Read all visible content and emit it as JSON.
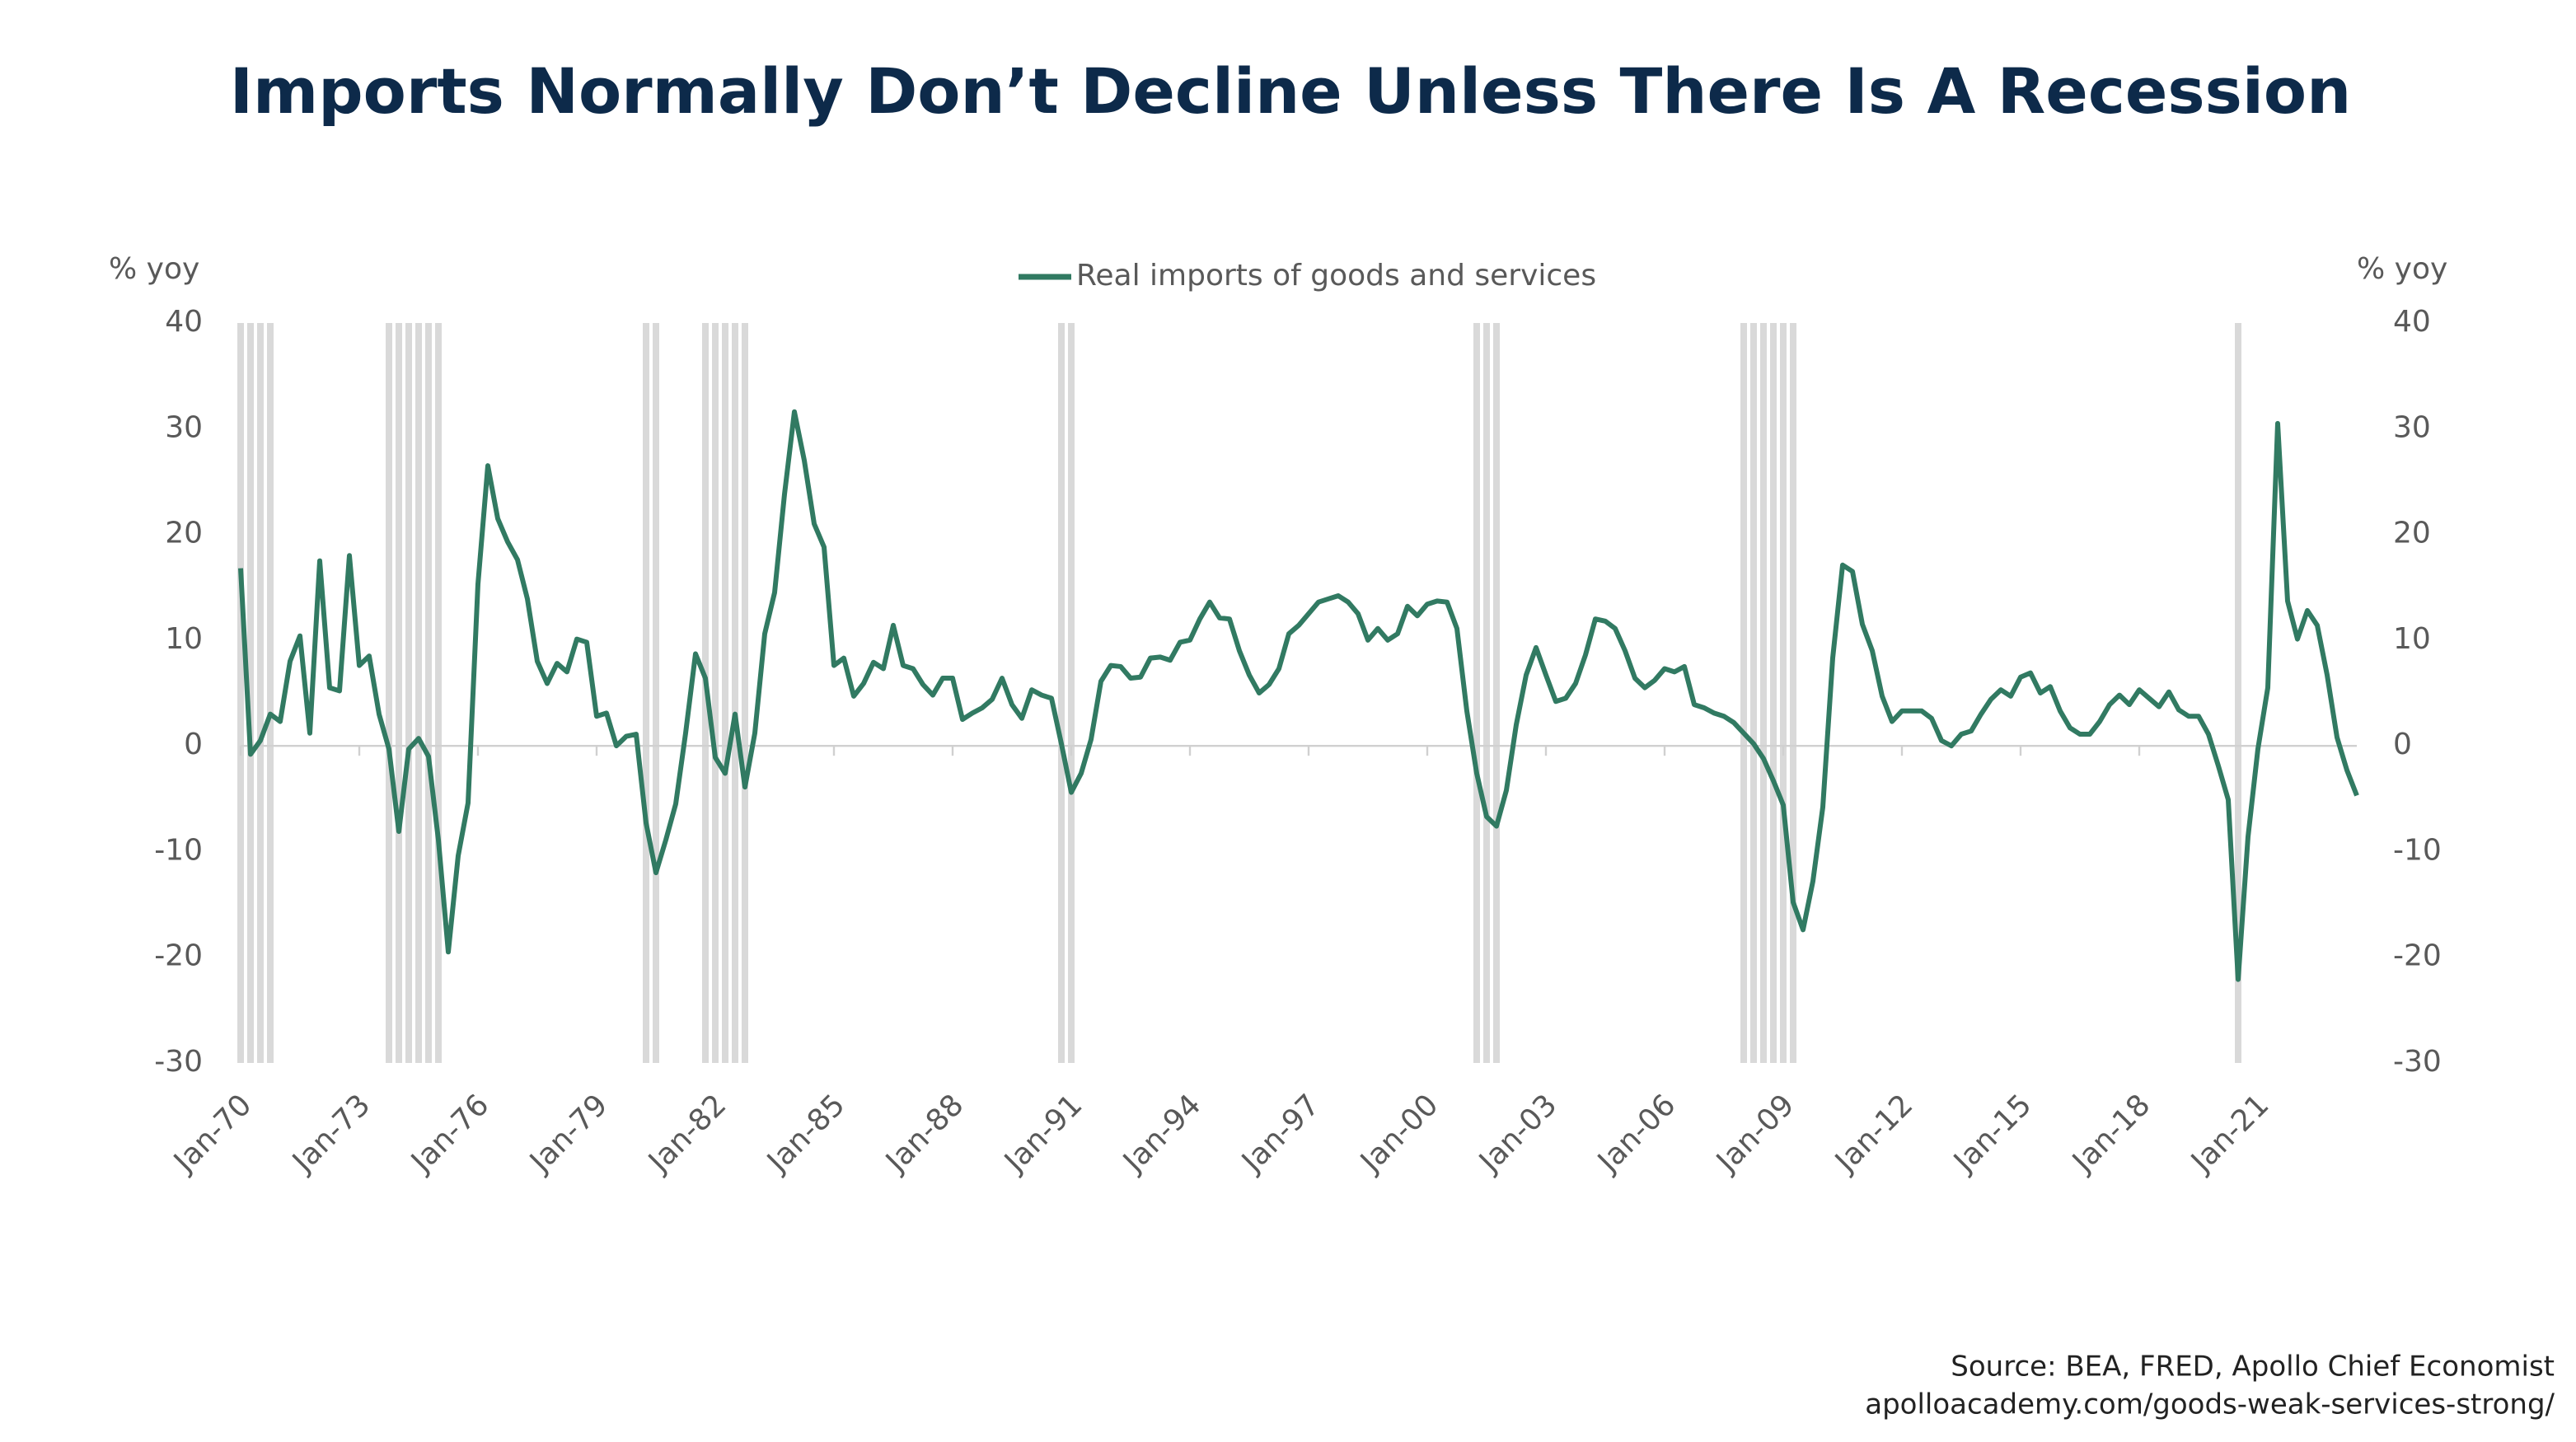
{
  "chart_data": {
    "type": "line",
    "title": "Imports Normally Don’t Decline Unless There Is A Recession",
    "y_label": "% yoy",
    "y2_label": "% yoy",
    "source": "Source: BEA, FRED, Apollo Chief Economist",
    "url": "apolloacademy.com/goods-weak-services-strong/",
    "legend": "top",
    "ylim": [
      -30,
      40
    ],
    "yticks": [
      -30,
      -20,
      -10,
      0,
      10,
      20,
      30,
      40
    ],
    "y2lim": [
      -30,
      40
    ],
    "y2ticks": [
      -30,
      -20,
      -10,
      0,
      10,
      20,
      30,
      40
    ],
    "recession_color": "#d9d9d9",
    "categories": [
      "Jan-70",
      null,
      null,
      null,
      null,
      null,
      null,
      null,
      null,
      null,
      null,
      null,
      "Jan-73",
      null,
      null,
      null,
      null,
      null,
      null,
      null,
      null,
      null,
      null,
      null,
      "Jan-76",
      null,
      null,
      null,
      null,
      null,
      null,
      null,
      null,
      null,
      null,
      null,
      "Jan-79",
      null,
      null,
      null,
      null,
      null,
      null,
      null,
      null,
      null,
      null,
      null,
      "Jan-82",
      null,
      null,
      null,
      null,
      null,
      null,
      null,
      null,
      null,
      null,
      null,
      "Jan-85",
      null,
      null,
      null,
      null,
      null,
      null,
      null,
      null,
      null,
      null,
      null,
      "Jan-88",
      null,
      null,
      null,
      null,
      null,
      null,
      null,
      null,
      null,
      null,
      null,
      "Jan-91",
      null,
      null,
      null,
      null,
      null,
      null,
      null,
      null,
      null,
      null,
      null,
      "Jan-94",
      null,
      null,
      null,
      null,
      null,
      null,
      null,
      null,
      null,
      null,
      null,
      "Jan-97",
      null,
      null,
      null,
      null,
      null,
      null,
      null,
      null,
      null,
      null,
      null,
      "Jan-00",
      null,
      null,
      null,
      null,
      null,
      null,
      null,
      null,
      null,
      null,
      null,
      "Jan-03",
      null,
      null,
      null,
      null,
      null,
      null,
      null,
      null,
      null,
      null,
      null,
      "Jan-06",
      null,
      null,
      null,
      null,
      null,
      null,
      null,
      null,
      null,
      null,
      null,
      "Jan-09",
      null,
      null,
      null,
      null,
      null,
      null,
      null,
      null,
      null,
      null,
      null,
      "Jan-12",
      null,
      null,
      null,
      null,
      null,
      null,
      null,
      null,
      null,
      null,
      null,
      "Jan-15",
      null,
      null,
      null,
      null,
      null,
      null,
      null,
      null,
      null,
      null,
      null,
      "Jan-18",
      null,
      null,
      null,
      null,
      null,
      null,
      null,
      null,
      null,
      null,
      null,
      "Jan-21",
      null,
      null,
      null,
      null,
      null,
      null,
      null,
      null,
      null,
      null
    ],
    "recession": [
      true,
      true,
      true,
      true,
      false,
      false,
      false,
      false,
      false,
      false,
      false,
      false,
      false,
      false,
      false,
      true,
      true,
      true,
      true,
      true,
      true,
      false,
      false,
      false,
      false,
      false,
      false,
      false,
      false,
      false,
      false,
      false,
      false,
      false,
      false,
      false,
      false,
      false,
      false,
      false,
      false,
      true,
      true,
      false,
      false,
      false,
      false,
      true,
      true,
      true,
      true,
      true,
      false,
      false,
      false,
      false,
      false,
      false,
      false,
      false,
      false,
      false,
      false,
      false,
      false,
      false,
      false,
      false,
      false,
      false,
      false,
      false,
      false,
      false,
      false,
      false,
      false,
      false,
      false,
      false,
      false,
      false,
      false,
      true,
      true,
      false,
      false,
      false,
      false,
      false,
      false,
      false,
      false,
      false,
      false,
      false,
      false,
      false,
      false,
      false,
      false,
      false,
      false,
      false,
      false,
      false,
      false,
      false,
      false,
      false,
      false,
      false,
      false,
      false,
      false,
      false,
      false,
      false,
      false,
      false,
      false,
      false,
      false,
      false,
      false,
      true,
      true,
      true,
      false,
      false,
      false,
      false,
      false,
      false,
      false,
      false,
      false,
      false,
      false,
      false,
      false,
      false,
      false,
      false,
      false,
      false,
      false,
      false,
      false,
      false,
      false,
      false,
      true,
      true,
      true,
      true,
      true,
      true,
      false,
      false,
      false,
      false,
      false,
      false,
      false,
      false,
      false,
      false,
      false,
      false,
      false,
      false,
      false,
      false,
      false,
      false,
      false,
      false,
      false,
      false,
      false,
      false,
      false,
      false,
      false,
      false,
      false,
      false,
      false,
      false,
      false,
      false,
      false,
      false,
      false,
      false,
      false,
      false,
      false,
      false,
      false,
      false,
      true,
      false,
      false,
      false,
      false,
      false,
      false,
      false,
      false,
      false,
      false,
      false,
      false
    ],
    "series": [
      {
        "name": "Real imports of goods and services",
        "color": "#317a62",
        "values": [
          16.8,
          -0.8,
          0.5,
          3,
          2.3,
          8,
          10.4,
          1.2,
          17.5,
          5.5,
          5.2,
          18,
          7.6,
          8.5,
          3,
          -0.3,
          -8.1,
          -0.3,
          0.7,
          -1,
          -8.9,
          -19.5,
          -10.4,
          -5.4,
          15.3,
          26.5,
          21.5,
          19.3,
          17.6,
          13.9,
          8,
          5.9,
          7.8,
          7,
          10.1,
          9.8,
          2.8,
          3.1,
          0,
          0.9,
          1.1,
          -7.3,
          -12,
          -8.9,
          -5.5,
          1.2,
          8.7,
          6.4,
          -1.1,
          -2.6,
          3,
          -3.9,
          1.2,
          10.6,
          14.5,
          23.8,
          31.6,
          27,
          21,
          18.8,
          7.6,
          8.3,
          4.7,
          5.9,
          7.9,
          7.3,
          11.4,
          7.6,
          7.3,
          5.8,
          4.8,
          6.4,
          6.4,
          2.5,
          3.1,
          3.6,
          4.4,
          6.4,
          3.9,
          2.6,
          5.3,
          4.8,
          4.5,
          0.2,
          -4.4,
          -2.6,
          0.6,
          6.1,
          7.6,
          7.5,
          6.4,
          6.5,
          8.3,
          8.4,
          8.1,
          9.8,
          10,
          12,
          13.6,
          12.1,
          12,
          9,
          6.7,
          5,
          5.8,
          7.3,
          10.6,
          11.4,
          12.5,
          13.6,
          13.9,
          14.2,
          13.6,
          12.5,
          10,
          11.1,
          10,
          10.6,
          13.2,
          12.3,
          13.4,
          13.7,
          13.6,
          11.1,
          3.3,
          -2.6,
          -6.7,
          -7.6,
          -4.2,
          2,
          6.7,
          9.3,
          6.7,
          4.2,
          4.5,
          5.9,
          8.6,
          12,
          11.8,
          11.1,
          9,
          6.4,
          5.5,
          6.2,
          7.3,
          7,
          7.5,
          3.9,
          3.6,
          3.1,
          2.8,
          2.2,
          1.2,
          0.2,
          -1.2,
          -3.3,
          -5.6,
          -14.8,
          -17.4,
          -12.8,
          -5.8,
          8.3,
          17.1,
          16.5,
          11.5,
          9,
          4.7,
          2.3,
          3.3,
          3.3,
          3.3,
          2.6,
          0.5,
          0,
          1.1,
          1.4,
          3,
          4.4,
          5.3,
          4.7,
          6.5,
          6.9,
          5,
          5.6,
          3.3,
          1.7,
          1.1,
          1.1,
          2.3,
          3.9,
          4.8,
          3.9,
          5.3,
          4.5,
          3.7,
          5.1,
          3.4,
          2.8,
          2.8,
          1.1,
          -1.9,
          -5.1,
          -22.1,
          -8.6,
          -0.3,
          5.5,
          30.5,
          13.7,
          10.1,
          12.8,
          11.4,
          6.7,
          0.8,
          -2.3,
          -4.7
        ]
      }
    ]
  }
}
